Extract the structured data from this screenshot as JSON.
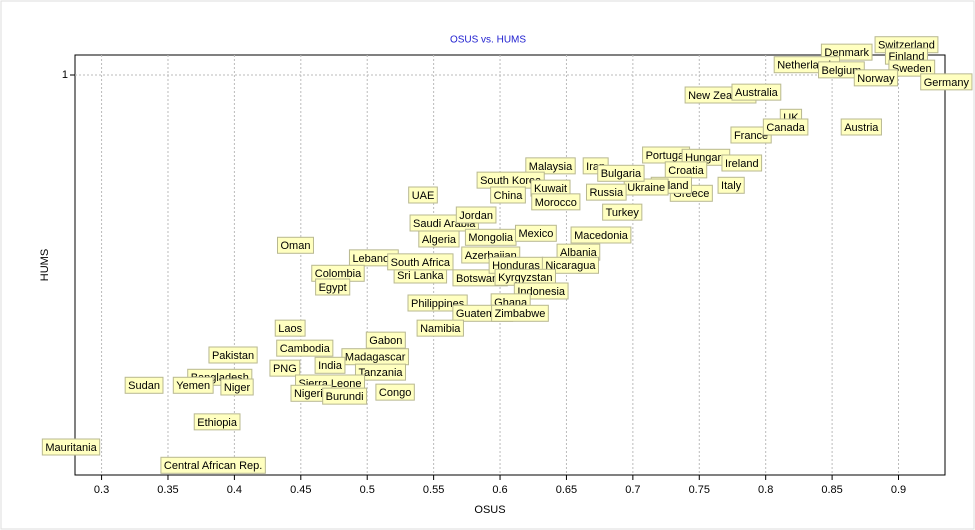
{
  "chart_data": {
    "type": "scatter",
    "title": "OSUS vs. HUMS",
    "x_label": "OSUS",
    "y_label": "HUMS",
    "categories": [
      "Switzerland",
      "Denmark",
      "Finland",
      "Netherlands",
      "Sweden",
      "Belgium",
      "Norway",
      "Germany",
      "New Zealand",
      "Australia",
      "UK",
      "France",
      "Canada",
      "Austria",
      "Portugal",
      "Hungary",
      "Ireland",
      "Croatia",
      "Italy",
      "Greece",
      "Poland",
      "Ukraine",
      "Malaysia",
      "Iran",
      "Bulgaria",
      "South Korea",
      "Kuwait",
      "Russia",
      "China",
      "Morocco",
      "Turkey",
      "UAE",
      "Saudi Arabia",
      "Jordan",
      "Algeria",
      "Mongolia",
      "Mexico",
      "Macedonia",
      "Oman",
      "Lebanon",
      "Azerbaijan",
      "Albania",
      "Colombia",
      "Sri Lanka",
      "South Africa",
      "Botswana",
      "Honduras",
      "Nicaragua",
      "Kyrgyzstan",
      "Egypt",
      "Indonesia",
      "Philippines",
      "Ghana",
      "Guatemala",
      "Zimbabwe",
      "Namibia",
      "Laos",
      "Gabon",
      "Cambodia",
      "Pakistan",
      "Madagascar",
      "India",
      "PNG",
      "Tanzania",
      "Bangladesh",
      "Sudan",
      "Yemen",
      "Niger",
      "Sierra Leone",
      "Nigeria",
      "Burundi",
      "Congo",
      "Ethiopia",
      "Mauritania",
      "Central African Rep."
    ],
    "x": [
      0.906,
      0.861,
      0.906,
      0.831,
      0.91,
      0.857,
      0.883,
      0.936,
      0.766,
      0.793,
      0.819,
      0.789,
      0.815,
      0.872,
      0.725,
      0.755,
      0.782,
      0.74,
      0.774,
      0.744,
      0.729,
      0.71,
      0.638,
      0.672,
      0.691,
      0.608,
      0.638,
      0.68,
      0.606,
      0.642,
      0.692,
      0.542,
      0.558,
      0.582,
      0.554,
      0.593,
      0.627,
      0.676,
      0.446,
      0.505,
      0.593,
      0.659,
      0.478,
      0.54,
      0.54,
      0.585,
      0.612,
      0.653,
      0.619,
      0.474,
      0.631,
      0.553,
      0.608,
      0.587,
      0.615,
      0.555,
      0.442,
      0.514,
      0.453,
      0.399,
      0.506,
      0.472,
      0.438,
      0.51,
      0.389,
      0.332,
      0.369,
      0.402,
      0.472,
      0.458,
      0.483,
      0.521,
      0.387,
      0.277,
      0.384
    ],
    "values": [
      1.053,
      1.04,
      1.033,
      1.018,
      1.012,
      1.009,
      0.995,
      0.988,
      0.965,
      0.97,
      0.926,
      0.895,
      0.909,
      0.909,
      0.86,
      0.856,
      0.846,
      0.834,
      0.807,
      0.793,
      0.807,
      0.804,
      0.841,
      0.841,
      0.828,
      0.816,
      0.802,
      0.795,
      0.79,
      0.778,
      0.76,
      0.79,
      0.741,
      0.755,
      0.713,
      0.716,
      0.723,
      0.72,
      0.702,
      0.68,
      0.685,
      0.69,
      0.653,
      0.65,
      0.673,
      0.645,
      0.667,
      0.667,
      0.646,
      0.629,
      0.622,
      0.601,
      0.603,
      0.583,
      0.583,
      0.557,
      0.557,
      0.536,
      0.522,
      0.51,
      0.507,
      0.492,
      0.487,
      0.48,
      0.471,
      0.457,
      0.457,
      0.454,
      0.461,
      0.443,
      0.438,
      0.445,
      0.393,
      0.349,
      0.317
    ],
    "xlim": [
      0.28,
      0.935
    ],
    "ylim": [
      0.3,
      1.035
    ],
    "xticks": [
      0.3,
      0.35,
      0.4,
      0.45,
      0.5,
      0.55,
      0.6,
      0.65,
      0.7,
      0.75,
      0.8,
      0.85,
      0.9
    ],
    "yticks": [
      1
    ],
    "grid": true,
    "color": "#ffffc0"
  }
}
